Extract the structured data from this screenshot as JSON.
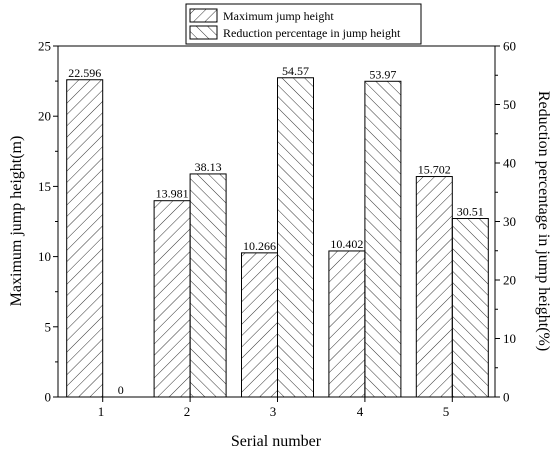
{
  "chart_data": {
    "type": "bar",
    "categories": [
      "1",
      "2",
      "3",
      "4",
      "5"
    ],
    "xlabel": "Serial number",
    "series": [
      {
        "name": "Maximum jump height",
        "axis": "left",
        "values": [
          22.596,
          13.981,
          10.266,
          10.402,
          15.702
        ],
        "labels": [
          "22.596",
          "13.981",
          "10.266",
          "10.402",
          "15.702"
        ],
        "hatch": "forward-slash"
      },
      {
        "name": "Reduction percentage in jump height",
        "axis": "right",
        "values": [
          0,
          38.13,
          54.57,
          53.97,
          30.51
        ],
        "labels": [
          "0",
          "38.13",
          "54.57",
          "53.97",
          "30.51"
        ],
        "hatch": "back-slash"
      }
    ],
    "y_left": {
      "label": "Maximum jump height(m)",
      "lim": [
        0,
        25
      ],
      "ticks": [
        "0",
        "5",
        "10",
        "15",
        "20",
        "25"
      ]
    },
    "y_right": {
      "label": "Reduction percentage in jump height(%)",
      "lim": [
        0,
        60
      ],
      "ticks": [
        "0",
        "10",
        "20",
        "30",
        "40",
        "50",
        "60"
      ]
    },
    "grid": false,
    "legend_position": "top-center"
  }
}
